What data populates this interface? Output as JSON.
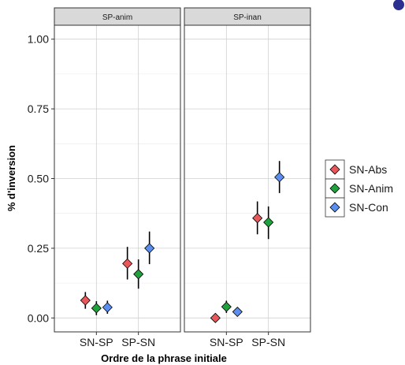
{
  "chart_data": {
    "type": "scatter",
    "xlabel": "Ordre de la phrase initiale",
    "ylabel": "% d'inversion",
    "ylim": [
      -0.05,
      1.05
    ],
    "yticks": [
      0.0,
      0.25,
      0.5,
      0.75,
      1.0
    ],
    "ytick_labels": [
      "0.00",
      "0.25",
      "0.50",
      "0.75",
      "1.00"
    ],
    "categories": [
      "SN-SP",
      "SP-SN"
    ],
    "grid": true,
    "legend_position": "right",
    "facets": [
      {
        "label": "SP-anim",
        "series": [
          {
            "name": "SN-Abs",
            "color": "#e8585a",
            "values": [
              0.063,
              0.195
            ],
            "lower": [
              0.033,
              0.138
            ],
            "upper": [
              0.093,
              0.255
            ]
          },
          {
            "name": "SN-Anim",
            "color": "#1fa23c",
            "values": [
              0.035,
              0.157
            ],
            "lower": [
              0.01,
              0.105
            ],
            "upper": [
              0.06,
              0.21
            ]
          },
          {
            "name": "SN-Con",
            "color": "#5a8ff0",
            "values": [
              0.038,
              0.25
            ],
            "lower": [
              0.015,
              0.193
            ],
            "upper": [
              0.062,
              0.31
            ]
          }
        ]
      },
      {
        "label": "SP-inan",
        "series": [
          {
            "name": "SN-Abs",
            "color": "#e8585a",
            "values": [
              0.0,
              0.358
            ],
            "lower": [
              0.0,
              0.3
            ],
            "upper": [
              0.0,
              0.418
            ]
          },
          {
            "name": "SN-Anim",
            "color": "#1fa23c",
            "values": [
              0.04,
              0.343
            ],
            "lower": [
              0.018,
              0.283
            ],
            "upper": [
              0.062,
              0.4
            ]
          },
          {
            "name": "SN-Con",
            "color": "#5a8ff0",
            "values": [
              0.022,
              0.505
            ],
            "lower": [
              0.008,
              0.448
            ],
            "upper": [
              0.036,
              0.563
            ]
          }
        ]
      }
    ],
    "legend": [
      {
        "label": "SN-Abs",
        "color": "#e8585a"
      },
      {
        "label": "SN-Anim",
        "color": "#1fa23c"
      },
      {
        "label": "SN-Con",
        "color": "#5a8ff0"
      }
    ]
  }
}
